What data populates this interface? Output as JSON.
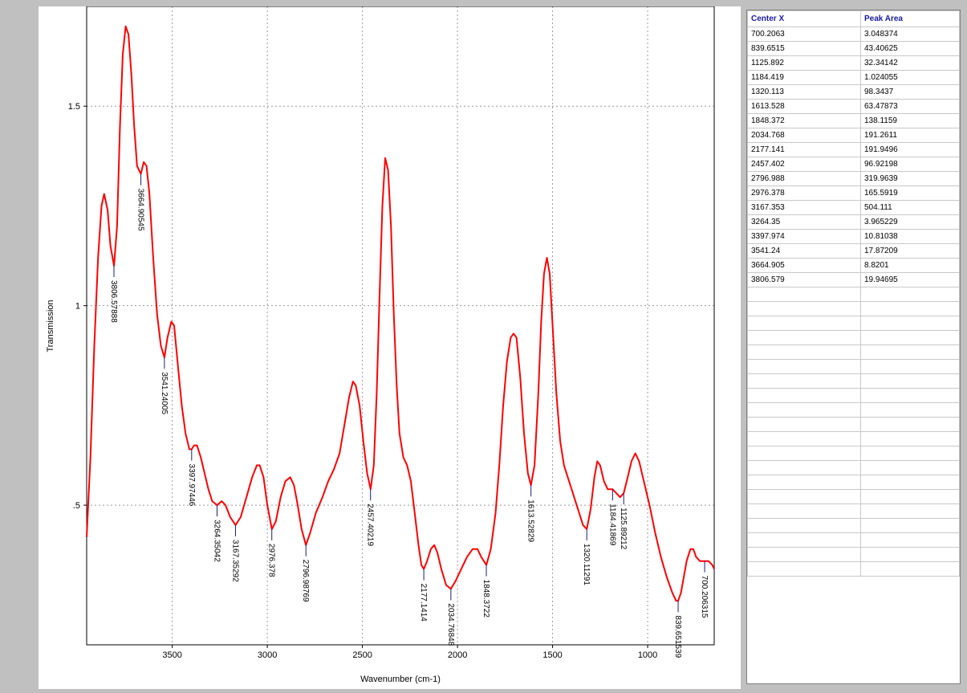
{
  "chart_data": {
    "type": "line",
    "xlabel": "Wavenumber (cm-1)",
    "ylabel": "Transmission",
    "xlim": [
      3950,
      650
    ],
    "ylim": [
      0.15,
      1.75
    ],
    "x_reversed": true,
    "grid": true,
    "x_ticks": [
      3500,
      3000,
      2500,
      2000,
      1500,
      1000
    ],
    "x_tick_labels": [
      "3500",
      "3000",
      "2500",
      "2000",
      "1500",
      "1000"
    ],
    "y_ticks": [
      0.5,
      1,
      1.5
    ],
    "y_tick_labels": [
      ".5",
      "1",
      "1.5"
    ],
    "series": [
      {
        "color": "#ff0000",
        "points": [
          [
            3950,
            0.42
          ],
          [
            3930,
            0.62
          ],
          [
            3910,
            0.9
          ],
          [
            3890,
            1.12
          ],
          [
            3872,
            1.25
          ],
          [
            3858,
            1.28
          ],
          [
            3840,
            1.24
          ],
          [
            3825,
            1.15
          ],
          [
            3806,
            1.1
          ],
          [
            3790,
            1.2
          ],
          [
            3775,
            1.45
          ],
          [
            3760,
            1.63
          ],
          [
            3745,
            1.7
          ],
          [
            3730,
            1.68
          ],
          [
            3715,
            1.58
          ],
          [
            3700,
            1.45
          ],
          [
            3685,
            1.35
          ],
          [
            3665,
            1.33
          ],
          [
            3650,
            1.36
          ],
          [
            3635,
            1.35
          ],
          [
            3620,
            1.28
          ],
          [
            3600,
            1.12
          ],
          [
            3580,
            0.98
          ],
          [
            3560,
            0.9
          ],
          [
            3541,
            0.87
          ],
          [
            3525,
            0.92
          ],
          [
            3505,
            0.96
          ],
          [
            3490,
            0.95
          ],
          [
            3470,
            0.85
          ],
          [
            3450,
            0.75
          ],
          [
            3430,
            0.68
          ],
          [
            3410,
            0.64
          ],
          [
            3398,
            0.64
          ],
          [
            3385,
            0.65
          ],
          [
            3370,
            0.65
          ],
          [
            3350,
            0.62
          ],
          [
            3330,
            0.58
          ],
          [
            3310,
            0.54
          ],
          [
            3290,
            0.51
          ],
          [
            3264,
            0.5
          ],
          [
            3240,
            0.51
          ],
          [
            3220,
            0.5
          ],
          [
            3195,
            0.47
          ],
          [
            3167,
            0.45
          ],
          [
            3140,
            0.47
          ],
          [
            3110,
            0.52
          ],
          [
            3080,
            0.57
          ],
          [
            3055,
            0.6
          ],
          [
            3040,
            0.6
          ],
          [
            3020,
            0.57
          ],
          [
            3000,
            0.5
          ],
          [
            2976,
            0.44
          ],
          [
            2955,
            0.46
          ],
          [
            2930,
            0.52
          ],
          [
            2905,
            0.56
          ],
          [
            2880,
            0.57
          ],
          [
            2860,
            0.55
          ],
          [
            2840,
            0.5
          ],
          [
            2820,
            0.44
          ],
          [
            2797,
            0.4
          ],
          [
            2775,
            0.43
          ],
          [
            2745,
            0.48
          ],
          [
            2710,
            0.52
          ],
          [
            2680,
            0.56
          ],
          [
            2650,
            0.59
          ],
          [
            2620,
            0.63
          ],
          [
            2595,
            0.7
          ],
          [
            2570,
            0.77
          ],
          [
            2550,
            0.81
          ],
          [
            2535,
            0.8
          ],
          [
            2515,
            0.75
          ],
          [
            2495,
            0.66
          ],
          [
            2475,
            0.58
          ],
          [
            2457,
            0.54
          ],
          [
            2440,
            0.6
          ],
          [
            2425,
            0.78
          ],
          [
            2410,
            1.02
          ],
          [
            2395,
            1.25
          ],
          [
            2380,
            1.37
          ],
          [
            2365,
            1.34
          ],
          [
            2350,
            1.2
          ],
          [
            2335,
            0.98
          ],
          [
            2320,
            0.8
          ],
          [
            2305,
            0.68
          ],
          [
            2285,
            0.62
          ],
          [
            2265,
            0.6
          ],
          [
            2245,
            0.56
          ],
          [
            2225,
            0.48
          ],
          [
            2205,
            0.4
          ],
          [
            2190,
            0.35
          ],
          [
            2177,
            0.34
          ],
          [
            2160,
            0.36
          ],
          [
            2140,
            0.39
          ],
          [
            2122,
            0.4
          ],
          [
            2105,
            0.38
          ],
          [
            2085,
            0.34
          ],
          [
            2060,
            0.3
          ],
          [
            2035,
            0.29
          ],
          [
            2010,
            0.31
          ],
          [
            1980,
            0.34
          ],
          [
            1950,
            0.37
          ],
          [
            1920,
            0.39
          ],
          [
            1895,
            0.39
          ],
          [
            1875,
            0.37
          ],
          [
            1848,
            0.35
          ],
          [
            1825,
            0.39
          ],
          [
            1800,
            0.48
          ],
          [
            1780,
            0.6
          ],
          [
            1760,
            0.75
          ],
          [
            1740,
            0.86
          ],
          [
            1720,
            0.92
          ],
          [
            1705,
            0.93
          ],
          [
            1690,
            0.92
          ],
          [
            1670,
            0.82
          ],
          [
            1650,
            0.68
          ],
          [
            1630,
            0.58
          ],
          [
            1614,
            0.55
          ],
          [
            1595,
            0.6
          ],
          [
            1575,
            0.78
          ],
          [
            1560,
            0.96
          ],
          [
            1545,
            1.08
          ],
          [
            1530,
            1.12
          ],
          [
            1515,
            1.08
          ],
          [
            1500,
            0.95
          ],
          [
            1480,
            0.78
          ],
          [
            1460,
            0.66
          ],
          [
            1440,
            0.6
          ],
          [
            1420,
            0.57
          ],
          [
            1400,
            0.54
          ],
          [
            1380,
            0.51
          ],
          [
            1360,
            0.48
          ],
          [
            1340,
            0.45
          ],
          [
            1320,
            0.44
          ],
          [
            1300,
            0.49
          ],
          [
            1280,
            0.57
          ],
          [
            1265,
            0.61
          ],
          [
            1250,
            0.6
          ],
          [
            1230,
            0.56
          ],
          [
            1210,
            0.54
          ],
          [
            1185,
            0.54
          ],
          [
            1165,
            0.53
          ],
          [
            1145,
            0.52
          ],
          [
            1126,
            0.53
          ],
          [
            1105,
            0.57
          ],
          [
            1085,
            0.61
          ],
          [
            1065,
            0.63
          ],
          [
            1045,
            0.61
          ],
          [
            1020,
            0.56
          ],
          [
            990,
            0.5
          ],
          [
            960,
            0.43
          ],
          [
            930,
            0.37
          ],
          [
            900,
            0.32
          ],
          [
            870,
            0.28
          ],
          [
            850,
            0.26
          ],
          [
            840,
            0.26
          ],
          [
            825,
            0.28
          ],
          [
            810,
            0.32
          ],
          [
            795,
            0.36
          ],
          [
            775,
            0.39
          ],
          [
            760,
            0.39
          ],
          [
            745,
            0.37
          ],
          [
            725,
            0.36
          ],
          [
            700,
            0.36
          ],
          [
            680,
            0.36
          ],
          [
            660,
            0.35
          ],
          [
            650,
            0.34
          ]
        ]
      }
    ],
    "peak_labels": [
      {
        "x": 3806.5789,
        "y": 1.1,
        "text": "3806.57888"
      },
      {
        "x": 3664.9054,
        "y": 1.33,
        "text": "3664.90545"
      },
      {
        "x": 3541.2401,
        "y": 0.87,
        "text": "3541.24005"
      },
      {
        "x": 3397.9745,
        "y": 0.64,
        "text": "3397.97446"
      },
      {
        "x": 3264.3504,
        "y": 0.5,
        "text": "3264.35042"
      },
      {
        "x": 3167.3529,
        "y": 0.45,
        "text": "3167.35292"
      },
      {
        "x": 2976.378,
        "y": 0.44,
        "text": "2976.378"
      },
      {
        "x": 2796.9877,
        "y": 0.4,
        "text": "2796.98769"
      },
      {
        "x": 2457.4022,
        "y": 0.54,
        "text": "2457.40219"
      },
      {
        "x": 2177.1414,
        "y": 0.34,
        "text": "2177.1414"
      },
      {
        "x": 2034.7685,
        "y": 0.29,
        "text": "2034.76848"
      },
      {
        "x": 1848.3722,
        "y": 0.35,
        "text": "1848.3722"
      },
      {
        "x": 1613.5283,
        "y": 0.55,
        "text": "1613.52829"
      },
      {
        "x": 1320.1129,
        "y": 0.44,
        "text": "1320.11291"
      },
      {
        "x": 1184.4187,
        "y": 0.54,
        "text": "1184.41869"
      },
      {
        "x": 1125.8921,
        "y": 0.53,
        "text": "1125.89212"
      },
      {
        "x": 839.6515,
        "y": 0.26,
        "text": "839.651539"
      },
      {
        "x": 700.2063,
        "y": 0.36,
        "text": "700.206315"
      }
    ]
  },
  "table": {
    "headers": [
      "Center X",
      "Peak Area"
    ],
    "rows": [
      [
        "700.2063",
        "3.048374"
      ],
      [
        "839.6515",
        "43.40625"
      ],
      [
        "1125.892",
        "32.34142"
      ],
      [
        "1184.419",
        "1.024055"
      ],
      [
        "1320.113",
        "98.3437"
      ],
      [
        "1613.528",
        "63.47873"
      ],
      [
        "1848.372",
        "138.1159"
      ],
      [
        "2034.768",
        "191.2611"
      ],
      [
        "2177.141",
        "191.9496"
      ],
      [
        "2457.402",
        "96.92198"
      ],
      [
        "2796.988",
        "319.9639"
      ],
      [
        "2976.378",
        "165.5919"
      ],
      [
        "3167.353",
        "504.111"
      ],
      [
        "3264.35",
        "3.965229"
      ],
      [
        "3397.974",
        "10.81038"
      ],
      [
        "3541.24",
        "17.87209"
      ],
      [
        "3664.905",
        "8.8201"
      ],
      [
        "3806.579",
        "19.94695"
      ]
    ],
    "empty_rows": 20
  }
}
